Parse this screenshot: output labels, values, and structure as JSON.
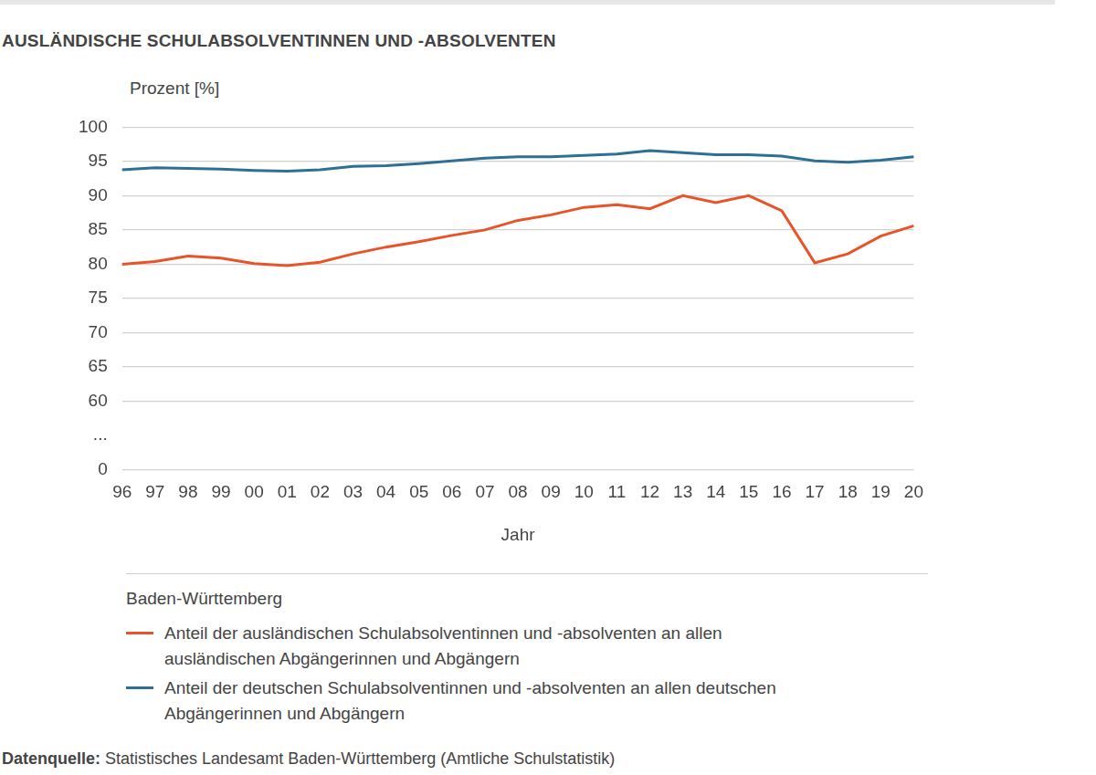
{
  "chart_data": {
    "type": "line",
    "title": "AUSLÄNDISCHE SCHULABSOLVENTINNEN UND -ABSOLVENTEN",
    "y_label": "Prozent [%]",
    "x_label": "Jahr",
    "categories": [
      "96",
      "97",
      "98",
      "99",
      "00",
      "01",
      "02",
      "03",
      "04",
      "05",
      "06",
      "07",
      "08",
      "09",
      "10",
      "11",
      "12",
      "13",
      "14",
      "15",
      "16",
      "17",
      "18",
      "19",
      "20"
    ],
    "series": [
      {
        "name": "Anteil der ausländischen Schulabsolventinnen und -absolventen an allen ausländischen Abgängerinnen und Abgängern",
        "color": "#e8542a",
        "values": [
          80.0,
          80.4,
          81.2,
          80.9,
          80.1,
          79.8,
          80.3,
          81.5,
          82.5,
          83.3,
          84.2,
          85.0,
          86.4,
          87.2,
          88.3,
          88.7,
          88.1,
          90.0,
          89.0,
          90.0,
          87.8,
          80.2,
          81.5,
          84.1,
          85.6
        ]
      },
      {
        "name": "Anteil der deutschen Schulabsolventinnen und -absolventen an allen deutschen Abgängerinnen und Abgängern",
        "color": "#2f6f95",
        "values": [
          93.8,
          94.1,
          94.0,
          93.9,
          93.7,
          93.6,
          93.8,
          94.3,
          94.4,
          94.7,
          95.1,
          95.5,
          95.7,
          95.7,
          95.9,
          96.1,
          96.6,
          96.3,
          96.0,
          96.0,
          95.8,
          95.1,
          94.9,
          95.2,
          95.7
        ]
      }
    ],
    "ylim": [
      0,
      100
    ],
    "yticks": [
      0,
      {
        "value": 30,
        "label": "..."
      },
      60,
      65,
      70,
      75,
      80,
      85,
      90,
      95,
      100
    ],
    "grid": true,
    "legend_title": "Baden-Württemberg",
    "source_label": "Datenquelle:",
    "source": "Statistisches Landesamt Baden-Württemberg (Amtliche Schulstatistik)"
  }
}
